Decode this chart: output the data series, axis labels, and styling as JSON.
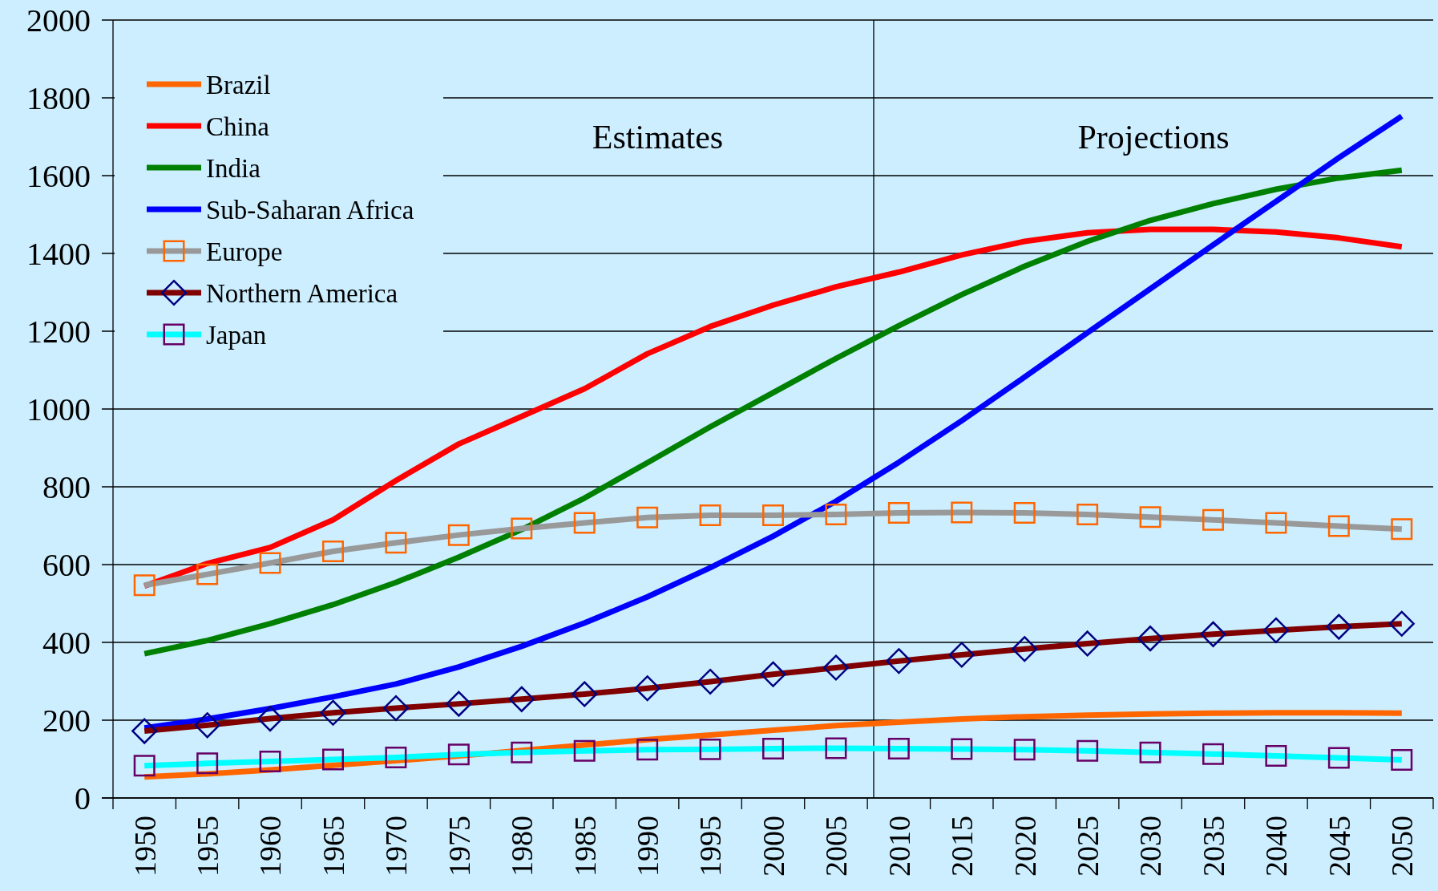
{
  "chart_data": {
    "type": "line",
    "x": [
      1950,
      1955,
      1960,
      1965,
      1970,
      1975,
      1980,
      1985,
      1990,
      1995,
      2000,
      2005,
      2010,
      2015,
      2020,
      2025,
      2030,
      2035,
      2040,
      2045,
      2050
    ],
    "xlim": [
      1947.5,
      2052.5
    ],
    "xticks": [
      1950,
      1955,
      1960,
      1965,
      1970,
      1975,
      1980,
      1985,
      1990,
      1995,
      2000,
      2005,
      2010,
      2015,
      2020,
      2025,
      2030,
      2035,
      2040,
      2045,
      2050
    ],
    "ylim": [
      0,
      2000
    ],
    "yticks": [
      0,
      200,
      400,
      600,
      800,
      1000,
      1200,
      1400,
      1600,
      1800,
      2000
    ],
    "grid": "y",
    "legend": "top left",
    "line_style": "solid",
    "series": [
      {
        "name": "Brazil",
        "color": "#ff6600",
        "marker": "none",
        "values": [
          54,
          62,
          72,
          84,
          96,
          108,
          122,
          136,
          150,
          162,
          174,
          186,
          195,
          203,
          209,
          213,
          216,
          218,
          219,
          219,
          218
        ]
      },
      {
        "name": "China",
        "color": "#ff0000",
        "marker": "none",
        "values": [
          545,
          603,
          644,
          715,
          816,
          910,
          981,
          1052,
          1142,
          1212,
          1267,
          1314,
          1352,
          1396,
          1431,
          1453,
          1462,
          1462,
          1455,
          1440,
          1417
        ]
      },
      {
        "name": "India",
        "color": "#008000",
        "marker": "none",
        "values": [
          371,
          405,
          448,
          497,
          554,
          619,
          690,
          771,
          862,
          954,
          1042,
          1130,
          1214,
          1294,
          1367,
          1431,
          1485,
          1528,
          1565,
          1594,
          1614
        ]
      },
      {
        "name": "Sub-Saharan Africa",
        "color": "#0000ff",
        "marker": "none",
        "values": [
          180,
          203,
          230,
          260,
          293,
          337,
          390,
          450,
          517,
          592,
          673,
          763,
          863,
          970,
          1082,
          1196,
          1309,
          1422,
          1534,
          1646,
          1753
        ]
      },
      {
        "name": "Europe",
        "color": "#999999",
        "marker": "square",
        "colors": [
          "#ff6600",
          "#ff6600",
          "#ff6600",
          "#ff6600",
          "#ff6600",
          "#ff6600",
          "#ff6600",
          "#ff6600",
          "#ff6600",
          "#ff6600",
          "#ff6600",
          "#ff6600",
          "#ff6600",
          "#ff6600",
          "#ff6600",
          "#ff6600",
          "#ff6600",
          "#ff6600",
          "#ff6600",
          "#ff6600",
          "#ff6600"
        ],
        "values": [
          547,
          575,
          604,
          634,
          656,
          676,
          693,
          707,
          721,
          727,
          727,
          729,
          733,
          734,
          733,
          729,
          722,
          715,
          707,
          699,
          691
        ]
      },
      {
        "name": "Northern America",
        "color": "#800000",
        "marker": "diamond",
        "colors": [
          "#000080",
          "#000080",
          "#000080",
          "#000080",
          "#000080",
          "#000080",
          "#000080",
          "#000080",
          "#000080",
          "#000080",
          "#000080",
          "#000080",
          "#000080",
          "#000080",
          "#000080",
          "#000080",
          "#000080",
          "#000080",
          "#000080",
          "#000080",
          "#000080"
        ],
        "values": [
          172,
          187,
          204,
          219,
          231,
          242,
          254,
          267,
          282,
          299,
          318,
          335,
          352,
          368,
          383,
          397,
          410,
          421,
          431,
          440,
          448
        ]
      },
      {
        "name": "Japan",
        "color": "#00ffff",
        "marker": "square",
        "colors": [
          "#660066",
          "#660066",
          "#660066",
          "#660066",
          "#660066",
          "#660066",
          "#660066",
          "#660066",
          "#660066",
          "#660066",
          "#660066",
          "#660066",
          "#660066",
          "#660066",
          "#660066",
          "#660066",
          "#660066",
          "#660066",
          "#660066",
          "#660066",
          "#660066"
        ],
        "values": [
          83,
          89,
          94,
          99,
          104,
          112,
          117,
          121,
          124,
          125,
          127,
          128,
          127,
          126,
          124,
          121,
          117,
          113,
          108,
          103,
          98
        ]
      }
    ],
    "ref_lines": [
      {
        "axis": "x",
        "value": 2008,
        "color": "#000000"
      }
    ],
    "annotations": [
      "Estimates",
      "Projections"
    ]
  }
}
